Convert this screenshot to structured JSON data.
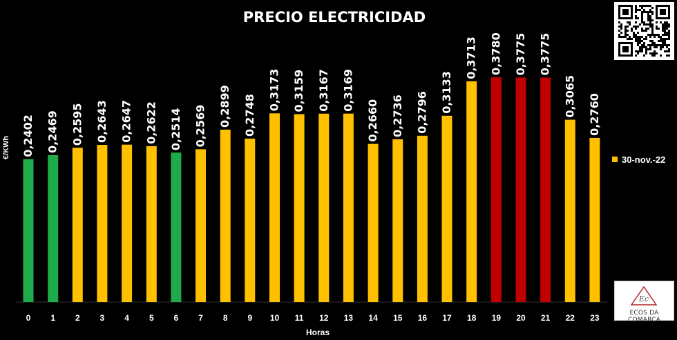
{
  "chart_data": {
    "type": "bar",
    "title": "PRECIO ELECTRICIDAD",
    "xlabel": "Horas",
    "ylabel": "€/KWh",
    "ylim": [
      0,
      0.4
    ],
    "grid": false,
    "legend_position": "right",
    "categories": [
      "0",
      "1",
      "2",
      "3",
      "4",
      "5",
      "6",
      "7",
      "8",
      "9",
      "10",
      "11",
      "12",
      "13",
      "14",
      "15",
      "16",
      "17",
      "18",
      "19",
      "20",
      "21",
      "22",
      "23"
    ],
    "series": [
      {
        "name": "30-nov.-22",
        "color": "#ffc000",
        "values": [
          0.2402,
          0.2469,
          0.2595,
          0.2643,
          0.2647,
          0.2622,
          0.2514,
          0.2569,
          0.2899,
          0.2748,
          0.3173,
          0.3159,
          0.3167,
          0.3169,
          0.266,
          0.2736,
          0.2796,
          0.3133,
          0.3713,
          0.378,
          0.3775,
          0.3775,
          0.3065,
          0.276
        ],
        "value_labels": [
          "0,2402",
          "0,2469",
          "0,2595",
          "0,2643",
          "0,2647",
          "0,2622",
          "0,2514",
          "0,2569",
          "0,2899",
          "0,2748",
          "0,3173",
          "0,3159",
          "0,3167",
          "0,3169",
          "0,2660",
          "0,2736",
          "0,2796",
          "0,3133",
          "0,3713",
          "0,3780",
          "0,3775",
          "0,3775",
          "0,3065",
          "0,2760"
        ],
        "bar_colors": [
          "#1faa4b",
          "#1faa4b",
          "#ffc000",
          "#ffc000",
          "#ffc000",
          "#ffc000",
          "#1faa4b",
          "#ffc000",
          "#ffc000",
          "#ffc000",
          "#ffc000",
          "#ffc000",
          "#ffc000",
          "#ffc000",
          "#ffc000",
          "#ffc000",
          "#ffc000",
          "#ffc000",
          "#ffc000",
          "#c00000",
          "#c00000",
          "#c00000",
          "#ffc000",
          "#ffc000"
        ]
      }
    ]
  },
  "colors": {
    "background": "#000000",
    "text": "#ffffff",
    "low": "#1faa4b",
    "mid": "#ffc000",
    "high": "#c00000"
  },
  "logo": {
    "text": "ECOS DA COMARCA",
    "mark": "Ec"
  }
}
